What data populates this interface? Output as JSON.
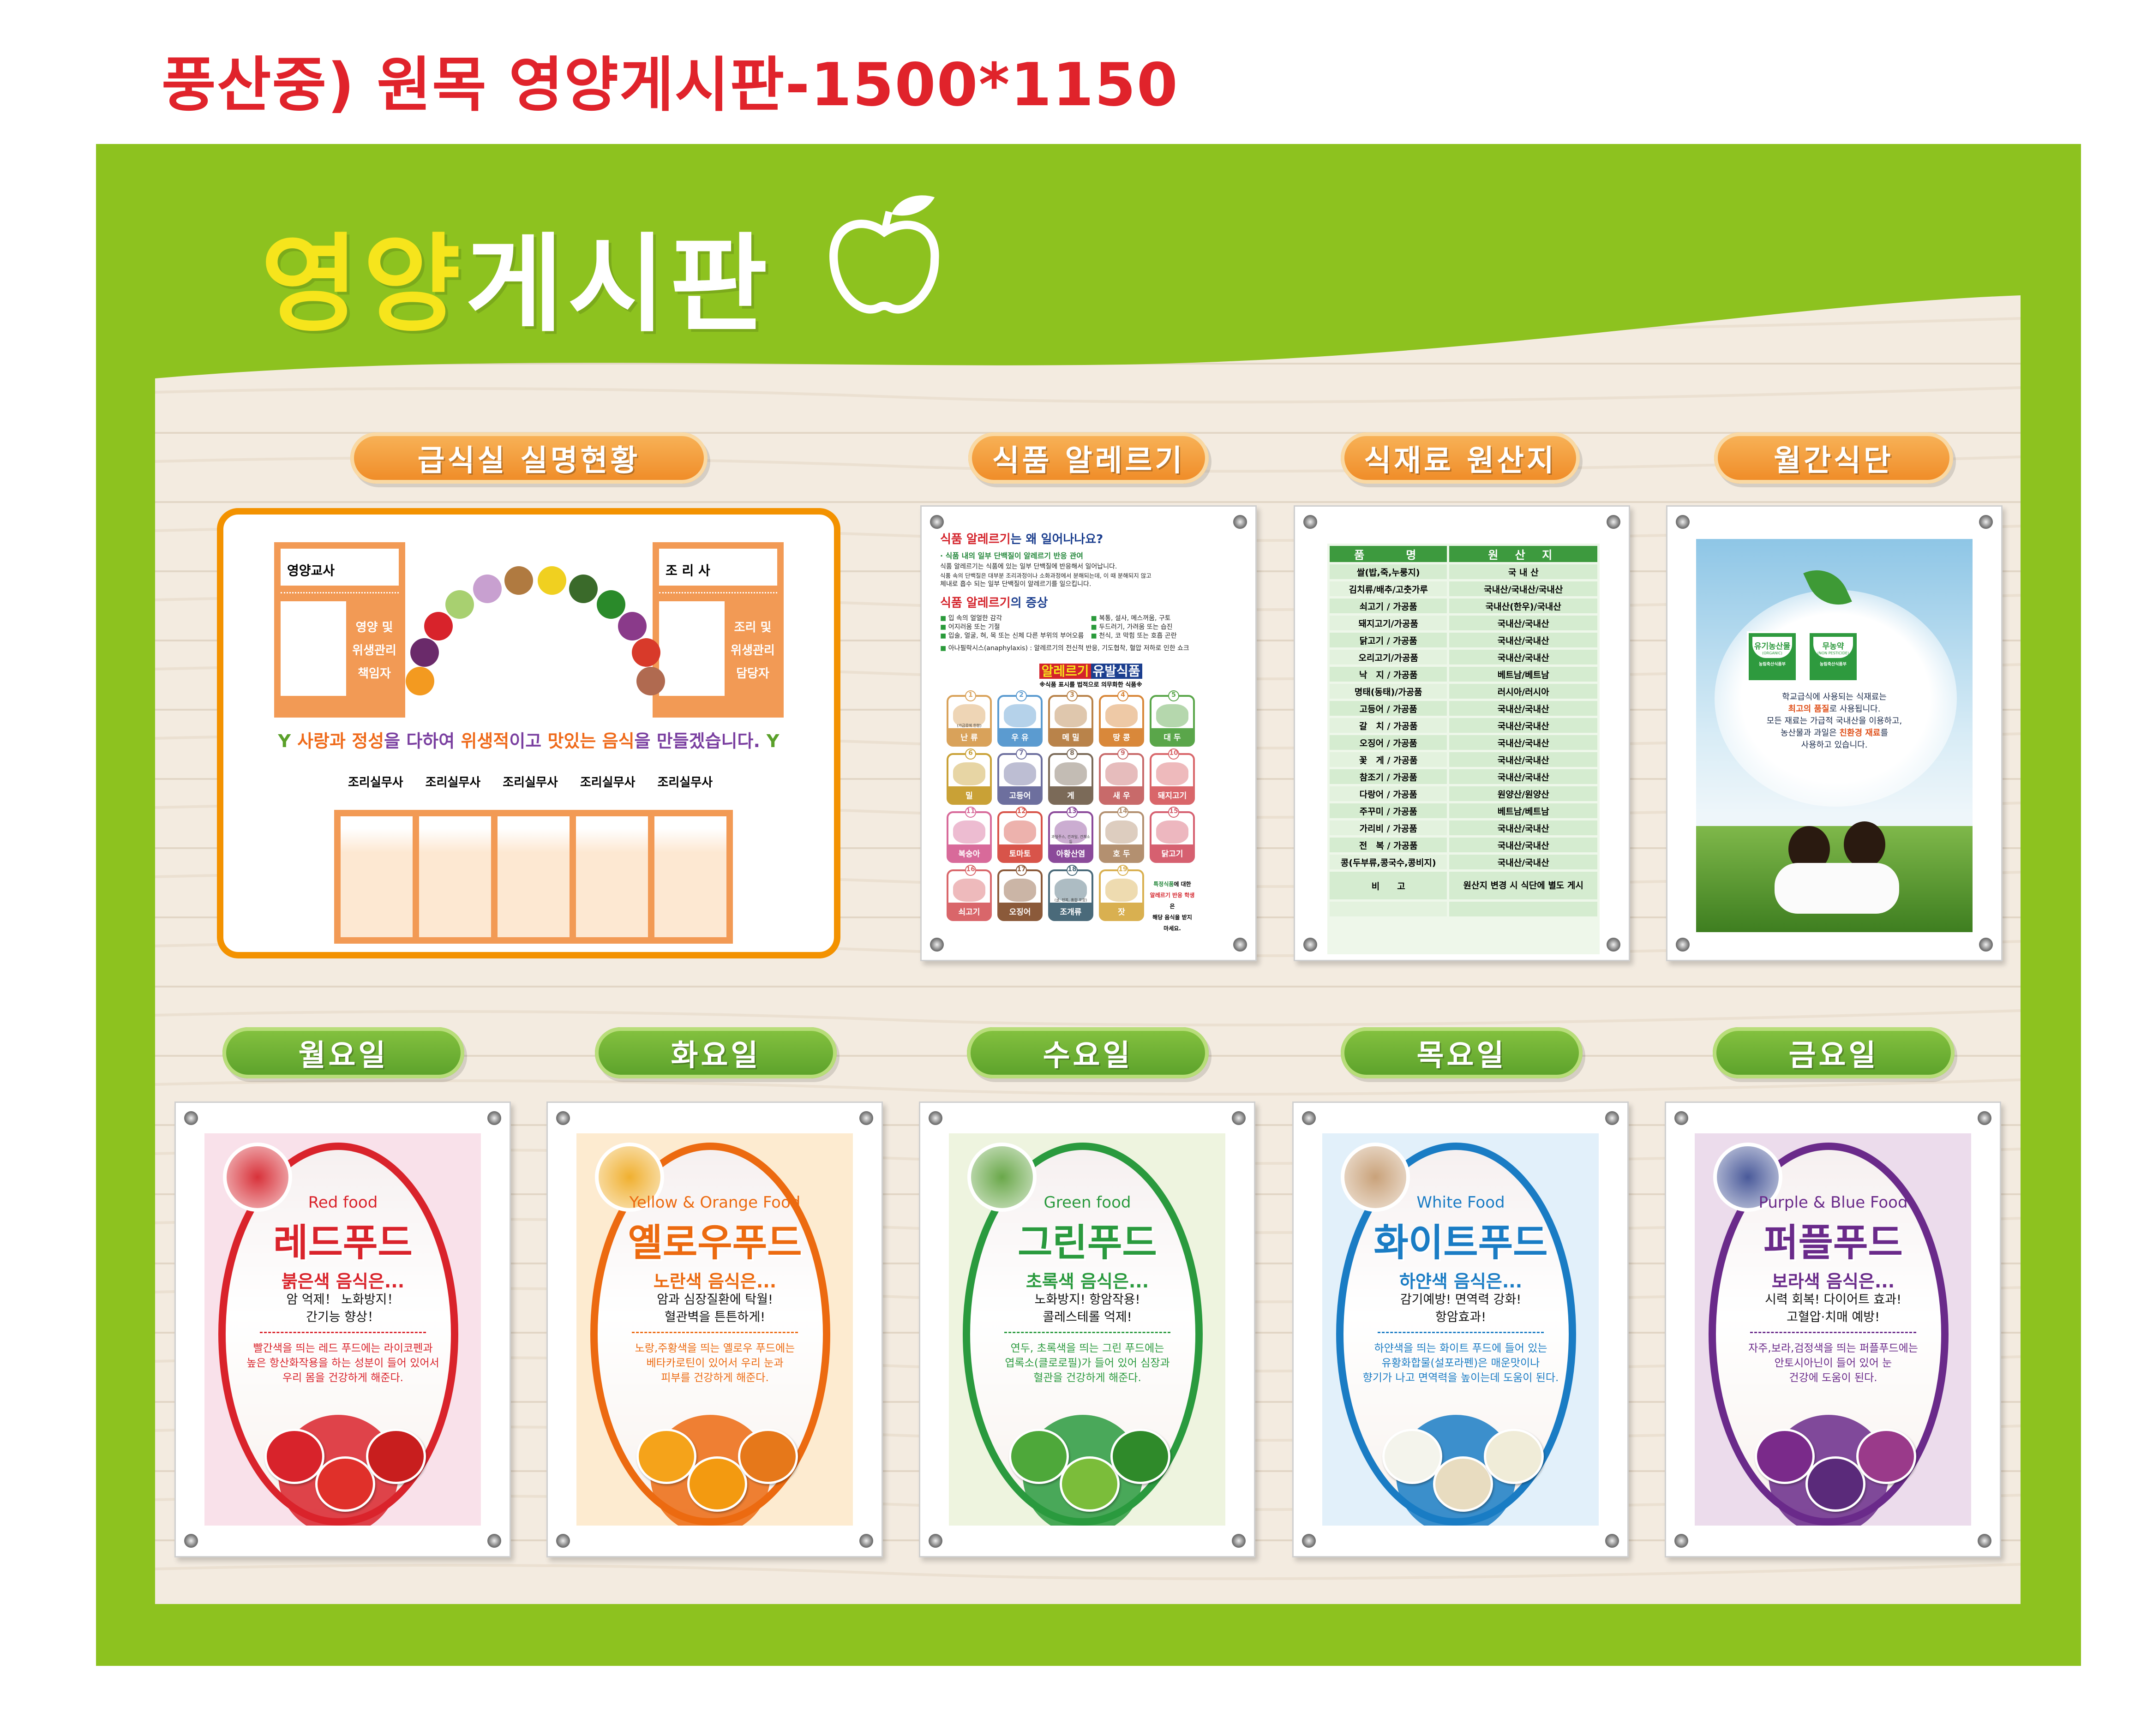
{
  "doc_title": "풍산중) 원목 영양게시판-1500*1150",
  "header": {
    "title_yellow": "영양",
    "title_white": "게시판",
    "icon": "apple-icon"
  },
  "colors": {
    "board_green": "#8dc21f",
    "title_red": "#e0232b",
    "orange": "#f39200",
    "pill_green": "#5aa02a",
    "header_yellow": "#f6e51c"
  },
  "sections": [
    "급식실 실명현황",
    "식품 알레르기",
    "식재료 원산지",
    "월간식단"
  ],
  "staff": {
    "nutritionist": {
      "name_label": "영양교사",
      "role": [
        "영양 및",
        "위생관리",
        "책임자"
      ]
    },
    "cook": {
      "name_label": "조 리 사",
      "role": [
        "조리 및",
        "위생관리",
        "담당자"
      ]
    },
    "slogan": [
      {
        "t": "사랑과",
        "h": true
      },
      {
        "t": " "
      },
      {
        "t": "정성",
        "h": true
      },
      {
        "t": "을 다하여 "
      },
      {
        "t": "위생적",
        "h": true
      },
      {
        "t": "이고 "
      },
      {
        "t": "맛있는",
        "h": true
      },
      {
        "t": " "
      },
      {
        "t": "음식",
        "h": true
      },
      {
        "t": "을 만들겠습니다."
      }
    ],
    "assistants": [
      "조리실무사",
      "조리실무사",
      "조리실무사",
      "조리실무사",
      "조리실무사"
    ]
  },
  "allergy": {
    "q_red": "식품 알레르기",
    "q_rest": "는 왜 일어나나요?",
    "point": "· 식품 내의 일부 단백질이 알레르기 반응 관여",
    "para": [
      "식품 알레르기는 식품에 있는 일부 단백질에 반응해서 일어납니다.",
      "식품 속의 단백질은 대부분 조리과정이나 소화과정에서 분해되는데, 이 때 분해되지 않고",
      "체내로 흡수 되는 일부 단백질이 알레르기를 일으킵니다."
    ],
    "sym_title_red": "식품 알레르기",
    "sym_title_rest": "의 증상",
    "symptoms": [
      "입 속의 얼얼한 감각",
      "복통, 설사, 메스꺼움, 구토",
      "어지러움 또는 기절",
      "두드러기, 가려움 또는 습진",
      "입술, 얼굴, 혀, 목 또는 신체 다른 부위의 부어오름",
      "천식, 코 막힘 또는 호흡 곤란"
    ],
    "anaphylaxis": "아나필락시스(anaphylaxis) : 알레르기의 전신적 반응, 기도협착, 혈압 저하로 인한 쇼크",
    "list_title_a": "알레르기",
    "list_title_b": "유발식품",
    "list_note": "※식품 표시를 법적으로 의무화한 식품※",
    "foods": [
      {
        "n": "1",
        "label": "난 류",
        "note": "(가금류에 한함)",
        "color": "#d9a25a"
      },
      {
        "n": "2",
        "label": "우 유",
        "color": "#5b9bd0"
      },
      {
        "n": "3",
        "label": "메 밀",
        "color": "#b9834a"
      },
      {
        "n": "4",
        "label": "땅 콩",
        "color": "#d9883a"
      },
      {
        "n": "5",
        "label": "대 두",
        "color": "#5aa64a"
      },
      {
        "n": "6",
        "label": "밀",
        "color": "#c9a136"
      },
      {
        "n": "7",
        "label": "고등어",
        "color": "#6d6f9e"
      },
      {
        "n": "8",
        "label": "게",
        "color": "#7b6a58"
      },
      {
        "n": "9",
        "label": "새 우",
        "color": "#c86a6a"
      },
      {
        "n": "10",
        "label": "돼지고기",
        "color": "#d9666a"
      },
      {
        "n": "11",
        "label": "복숭아",
        "color": "#d86a9a"
      },
      {
        "n": "12",
        "label": "토마토",
        "color": "#d8544a"
      },
      {
        "n": "13",
        "label": "아황산염",
        "note": "과일주스, 건과일, 건채소 등",
        "color": "#8b4a9a"
      },
      {
        "n": "14",
        "label": "호 두",
        "color": "#b39070"
      },
      {
        "n": "15",
        "label": "닭고기",
        "color": "#d66070"
      },
      {
        "n": "16",
        "label": "쇠고기",
        "color": "#d9666a"
      },
      {
        "n": "17",
        "label": "오징어",
        "color": "#8b5a3a"
      },
      {
        "n": "18",
        "label": "조개류",
        "note": "(굴, 전복, 홍합 포함)",
        "color": "#4a6a7a"
      },
      {
        "n": "19",
        "label": "잣",
        "color": "#d9b050"
      }
    ],
    "warning": [
      {
        "t": "특정식품",
        "c": "gr"
      },
      {
        "t": "에 대한"
      },
      {
        "t": "알레르기 반응 학생",
        "c": "red",
        "br": true
      },
      {
        "t": "은"
      },
      {
        "t": "해당 음식을 받지 마세요.",
        "br": true
      }
    ]
  },
  "origin": {
    "headers": [
      "품　　명",
      "원 산 지"
    ],
    "rows": [
      [
        "쌀(밥,죽,누룽지)",
        "국 내 산"
      ],
      [
        "김치류/배추/고춧가루",
        "국내산/국내산/국내산"
      ],
      [
        "쇠고기 / 가공품",
        "국내산(한우)/국내산"
      ],
      [
        "돼지고기/가공품",
        "국내산/국내산"
      ],
      [
        "닭고기 / 가공품",
        "국내산/국내산"
      ],
      [
        "오리고기/가공품",
        "국내산/국내산"
      ],
      [
        "낙　지 / 가공품",
        "베트남/베트남"
      ],
      [
        "명태(동태)/가공품",
        "러시아/러시아"
      ],
      [
        "고등어 / 가공품",
        "국내산/국내산"
      ],
      [
        "갈　치 / 가공품",
        "국내산/국내산"
      ],
      [
        "오징어 / 가공품",
        "국내산/국내산"
      ],
      [
        "꽃　게 / 가공품",
        "국내산/국내산"
      ],
      [
        "참조기 / 가공품",
        "국내산/국내산"
      ],
      [
        "다랑어 / 가공품",
        "원양산/원양산"
      ],
      [
        "주꾸미 / 가공품",
        "베트남/베트남"
      ],
      [
        "가리비 / 가공품",
        "국내산/국내산"
      ],
      [
        "전　복 / 가공품",
        "국내산/국내산"
      ],
      [
        "콩(두부류,콩국수,콩비지)",
        "국내산/국내산"
      ]
    ],
    "remark_label": "비　　고",
    "remark": "원산지 변경 시 식단에 별도 게시"
  },
  "menu": {
    "badges": [
      {
        "main": "유기농산물",
        "sub": "(ORGANIC)",
        "org": "농림축산식품부"
      },
      {
        "main": "무농약",
        "sub": "(NON PESTICIDE)",
        "org": "농림축산식품부"
      }
    ],
    "text": [
      [
        {
          "t": "학교급식에 사용되는 식재료는"
        }
      ],
      [
        {
          "t": "최고의 품질",
          "h": true
        },
        {
          "t": "로 사용됩니다."
        }
      ],
      [
        {
          "t": "모든 재료는 가급적 국내산을 이용하고,"
        }
      ],
      [
        {
          "t": "농산물과 과일은 "
        },
        {
          "t": "친환경 재료",
          "h": true
        },
        {
          "t": "를"
        }
      ],
      [
        {
          "t": "사용하고 있습니다."
        }
      ]
    ]
  },
  "days": [
    {
      "day": "월요일",
      "en": "Red food",
      "ko": "레드푸드",
      "sub": "붉은색 음식은...",
      "lines": [
        "암 억제！ 노화방지！",
        "간기능 향상！"
      ],
      "desc": [
        "빨간색을 띄는 레드 푸드에는 라이코펜과",
        "높은 항산화작용을 하는 성분이 들어 있어서",
        "우리 몸을 건강하게 해준다."
      ],
      "color": "#d9232b",
      "bg": "#f9e1ea",
      "photo": "#d8323a",
      "veg": [
        "#d8232b",
        "#e0302a",
        "#c81e1e"
      ]
    },
    {
      "day": "화요일",
      "en": "Yellow & Orange Food",
      "ko": "옐로우푸드",
      "sub": "노란색 음식은...",
      "lines": [
        "암과 심장질환에 탁월!",
        "혈관벽을 튼튼하게!"
      ],
      "desc": [
        "노랑,주황색을 띄는 옐로우 푸드에는",
        "베타카로틴이 있어서 우리 눈과",
        "피부를 건강하게 해준다."
      ],
      "color": "#ec6a10",
      "bg": "#fdebd0",
      "photo": "#f0b030",
      "veg": [
        "#f5a31a",
        "#f39a10",
        "#e6781a"
      ]
    },
    {
      "day": "수요일",
      "en": "Green food",
      "ko": "그린푸드",
      "sub": "초록색 음식은...",
      "lines": [
        "노화방지! 항암작용!",
        "콜레스테롤 억제!"
      ],
      "desc": [
        "연두, 초록색을 띄는 그린 푸드에는",
        "엽록소(클로로필)가 들어 있어 심장과",
        "혈관을 건강하게 해준다."
      ],
      "color": "#2a9a3e",
      "bg": "#eef4df",
      "photo": "#6aa84a",
      "veg": [
        "#4ea83a",
        "#7bbd3a",
        "#2f8a2a"
      ]
    },
    {
      "day": "목요일",
      "en": "White Food",
      "ko": "화이트푸드",
      "sub": "하얀색 음식은...",
      "lines": [
        "감기예방! 면역력 강화!",
        "항암효과!"
      ],
      "desc": [
        "하얀색을 띄는 화이트 푸드에 들어 있는",
        "유황화합물(설포라펜)은 매운맛이나",
        "향기가 나고 면역력을 높이는데 도움이 된다."
      ],
      "color": "#1a7cc4",
      "bg": "#e2f0fa",
      "photo": "#c9a27a",
      "veg": [
        "#f4f4ec",
        "#e8dcc0",
        "#f0ecd8"
      ]
    },
    {
      "day": "금요일",
      "en": "Purple & Blue Food",
      "ko": "퍼플푸드",
      "sub": "보라색 음식은...",
      "lines": [
        "시력 회복! 다이어트 효과!",
        "고혈압·치매 예방!"
      ],
      "desc": [
        "자주,보라,검정색을 띄는 퍼플푸드에는",
        "안토시아닌이 들어 있어 눈",
        "건강에 도움이 된다."
      ],
      "color": "#6a2a8a",
      "bg": "#ecdcec",
      "photo": "#4a5a9a",
      "veg": [
        "#7a2a8a",
        "#5a2a7a",
        "#9a3a8a"
      ]
    }
  ]
}
